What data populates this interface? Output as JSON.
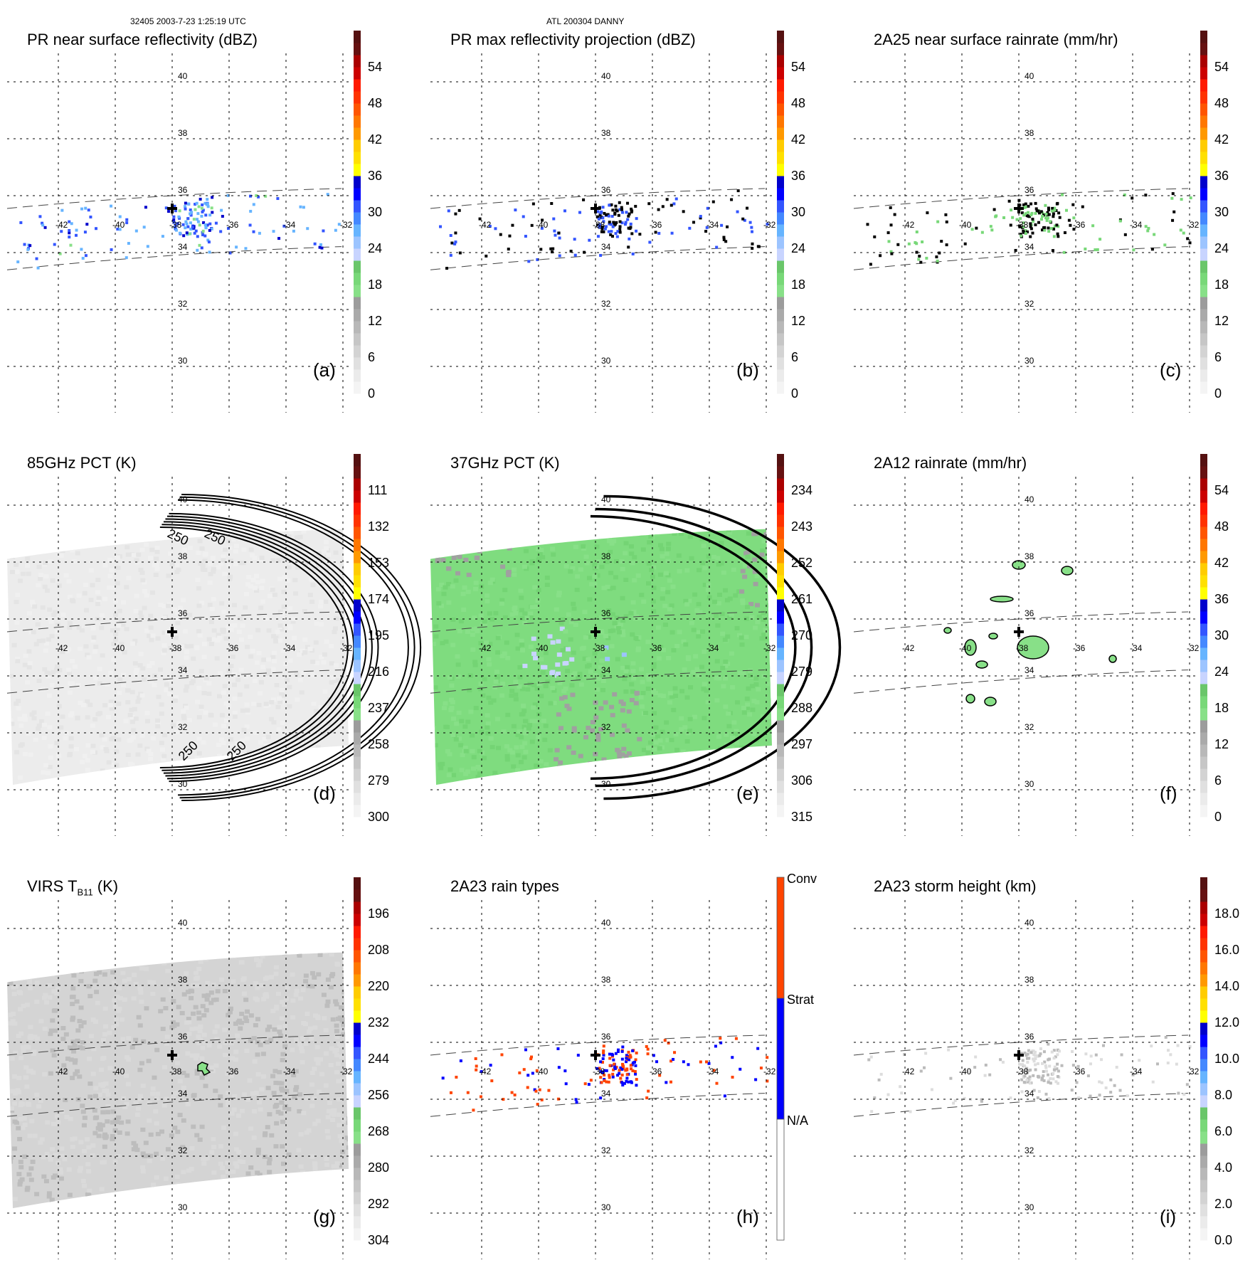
{
  "header": {
    "orbit_time": "32405 2003-7-23 1:25:19 UTC",
    "storm": "ATL 200304 DANNY"
  },
  "colors": {
    "grid": "#000000",
    "swath_edge": "#555555",
    "center_marker": "#000000",
    "rainbow_scale": [
      "#f4f4f4",
      "#ebebeb",
      "#e0e0e0",
      "#d3d3d3",
      "#c6c6c6",
      "#b8b8b8",
      "#aaaaaa",
      "#9c9c9c",
      "#88e088",
      "#78d878",
      "#6ac66a",
      "#c8d4ff",
      "#9cc4ff",
      "#66b4ff",
      "#4488ff",
      "#3355ff",
      "#0000ff",
      "#0000cc",
      "#ffff00",
      "#ffe000",
      "#ffcc00",
      "#ff9900",
      "#ff7700",
      "#ff5500",
      "#ff3300",
      "#ff1a00",
      "#cc0000",
      "#aa0000",
      "#661111",
      "#551111"
    ],
    "rain_type": {
      "conv": "#ff4400",
      "strat": "#0000ff",
      "na": "#ffffff"
    }
  },
  "chart_data": [
    {
      "id": "a",
      "type": "heatmap",
      "title": "PR near surface reflectivity (dBZ)",
      "panel_label": "(a)",
      "field": "pr_refl_surface",
      "colorbar": {
        "min": 0,
        "max": 60,
        "ticks": [
          "0",
          "6",
          "12",
          "18",
          "24",
          "30",
          "36",
          "42",
          "48",
          "54"
        ]
      },
      "xticks": [
        "-42",
        "-40",
        "-38",
        "-36",
        "-34",
        "-32"
      ],
      "yticks": [
        "30",
        "32",
        "34",
        "36",
        "38",
        "40"
      ],
      "xlim": [
        -43.8,
        -31.8
      ],
      "ylim": [
        29,
        41
      ],
      "center": {
        "lon": -38,
        "lat": 35
      }
    },
    {
      "id": "b",
      "type": "heatmap",
      "title": "PR max reflectivity projection (dBZ)",
      "panel_label": "(b)",
      "field": "pr_refl_max",
      "colorbar": {
        "min": 0,
        "max": 60,
        "ticks": [
          "0",
          "6",
          "12",
          "18",
          "24",
          "30",
          "36",
          "42",
          "48",
          "54"
        ]
      },
      "xticks": [
        "-42",
        "-40",
        "-38",
        "-36",
        "-34",
        "-32"
      ],
      "yticks": [
        "30",
        "32",
        "34",
        "36",
        "38",
        "40"
      ],
      "xlim": [
        -43.8,
        -31.8
      ],
      "ylim": [
        29,
        41
      ],
      "center": {
        "lon": -38,
        "lat": 35
      }
    },
    {
      "id": "c",
      "type": "heatmap",
      "title": "2A25 near surface rainrate (mm/hr)",
      "panel_label": "(c)",
      "field": "rain_2a25",
      "colorbar": {
        "min": 0,
        "max": 60,
        "ticks": [
          "0",
          "6",
          "12",
          "18",
          "24",
          "30",
          "36",
          "42",
          "48",
          "54"
        ]
      },
      "xticks": [
        "-42",
        "-40",
        "-38",
        "-36",
        "-34",
        "-32"
      ],
      "yticks": [
        "30",
        "32",
        "34",
        "36",
        "38",
        "40"
      ],
      "xlim": [
        -43.8,
        -31.8
      ],
      "ylim": [
        29,
        41
      ],
      "center": {
        "lon": -38,
        "lat": 35
      }
    },
    {
      "id": "d",
      "type": "heatmap",
      "title": "85GHz PCT (K)",
      "panel_label": "(d)",
      "field": "pct85",
      "colorbar": {
        "min": 300,
        "max": 90,
        "ticks": [
          "300",
          "279",
          "258",
          "237",
          "216",
          "195",
          "174",
          "153",
          "132",
          "111"
        ]
      },
      "contour_labels": [
        "250",
        "250",
        "250",
        "250"
      ],
      "xticks": [
        "-42",
        "-40",
        "-38",
        "-36",
        "-34",
        "-32"
      ],
      "yticks": [
        "30",
        "32",
        "34",
        "36",
        "38",
        "40"
      ],
      "xlim": [
        -43.8,
        -31.8
      ],
      "ylim": [
        29,
        41
      ],
      "center": {
        "lon": -38,
        "lat": 35
      }
    },
    {
      "id": "e",
      "type": "heatmap",
      "title": "37GHz PCT (K)",
      "panel_label": "(e)",
      "field": "pct37",
      "colorbar": {
        "min": 315,
        "max": 225,
        "ticks": [
          "315",
          "306",
          "297",
          "288",
          "279",
          "270",
          "261",
          "252",
          "243",
          "234"
        ]
      },
      "xticks": [
        "-42",
        "-40",
        "-38",
        "-36",
        "-34",
        "-32"
      ],
      "yticks": [
        "30",
        "32",
        "34",
        "36",
        "38",
        "40"
      ],
      "xlim": [
        -43.8,
        -31.8
      ],
      "ylim": [
        29,
        41
      ],
      "center": {
        "lon": -38,
        "lat": 35
      }
    },
    {
      "id": "f",
      "type": "heatmap",
      "title": "2A12 rainrate (mm/hr)",
      "panel_label": "(f)",
      "field": "rain_2a12",
      "colorbar": {
        "min": 0,
        "max": 60,
        "ticks": [
          "0",
          "6",
          "12",
          "18",
          "24",
          "30",
          "36",
          "42",
          "48",
          "54"
        ]
      },
      "xticks": [
        "-42",
        "-40",
        "-38",
        "-36",
        "-34",
        "-32"
      ],
      "yticks": [
        "30",
        "32",
        "34",
        "36",
        "38",
        "40"
      ],
      "xlim": [
        -43.8,
        -31.8
      ],
      "ylim": [
        29,
        41
      ],
      "center": {
        "lon": -38,
        "lat": 35
      }
    },
    {
      "id": "g",
      "type": "heatmap",
      "title_main": "VIRS T",
      "title_sub": "B11",
      "title_unit": " (K)",
      "panel_label": "(g)",
      "field": "virs",
      "colorbar": {
        "min": 304,
        "max": 184,
        "ticks": [
          "304",
          "292",
          "280",
          "268",
          "256",
          "244",
          "232",
          "220",
          "208",
          "196"
        ]
      },
      "xticks": [
        "-42",
        "-40",
        "-38",
        "-36",
        "-34",
        "-32"
      ],
      "yticks": [
        "30",
        "32",
        "34",
        "36",
        "38",
        "40"
      ],
      "xlim": [
        -43.8,
        -31.8
      ],
      "ylim": [
        29,
        41
      ],
      "center": {
        "lon": -38,
        "lat": 35
      }
    },
    {
      "id": "h",
      "type": "heatmap",
      "title": "2A23 rain types",
      "panel_label": "(h)",
      "field": "rain_type",
      "categories": [
        "N/A",
        "Strat",
        "Conv"
      ],
      "xticks": [
        "-42",
        "-40",
        "-38",
        "-36",
        "-34",
        "-32"
      ],
      "yticks": [
        "30",
        "32",
        "34",
        "36",
        "38",
        "40"
      ],
      "xlim": [
        -43.8,
        -31.8
      ],
      "ylim": [
        29,
        41
      ],
      "center": {
        "lon": -38,
        "lat": 35
      }
    },
    {
      "id": "i",
      "type": "heatmap",
      "title": "2A23 storm height (km)",
      "panel_label": "(i)",
      "field": "storm_height",
      "colorbar": {
        "min": 0,
        "max": 20,
        "ticks": [
          "0.0",
          "2.0",
          "4.0",
          "6.0",
          "8.0",
          "10.0",
          "12.0",
          "14.0",
          "16.0",
          "18.0"
        ]
      },
      "xticks": [
        "-42",
        "-40",
        "-38",
        "-36",
        "-34",
        "-32"
      ],
      "yticks": [
        "30",
        "32",
        "34",
        "36",
        "38",
        "40"
      ],
      "xlim": [
        -43.8,
        -31.8
      ],
      "ylim": [
        29,
        41
      ],
      "center": {
        "lon": -38,
        "lat": 35
      }
    }
  ]
}
